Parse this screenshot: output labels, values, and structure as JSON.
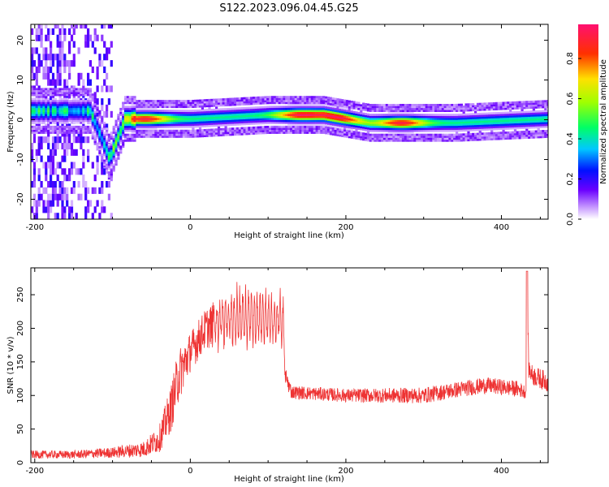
{
  "chart_data": [
    {
      "type": "heatmap",
      "title": "S122.2023.096.04.45.G25",
      "xlabel": "Height of straight line (km)",
      "ylabel": "Frequency (Hz)",
      "xlim": [
        -205,
        460
      ],
      "ylim": [
        -25,
        24
      ],
      "x_ticks": [
        -200,
        0,
        200,
        400
      ],
      "y_ticks": [
        -20,
        -10,
        0,
        10,
        20
      ],
      "colorbar": {
        "label": "Normalized spectral amplitude",
        "range": [
          0.0,
          0.97
        ],
        "ticks": [
          0.0,
          0.2,
          0.4,
          0.6,
          0.8
        ]
      },
      "ridge": {
        "description_points": [
          {
            "x": -130,
            "y": 2
          },
          {
            "x": -115,
            "y": -5
          },
          {
            "x": -105,
            "y": -10
          },
          {
            "x": -85,
            "y": 0
          },
          {
            "x": -70,
            "y": 0
          },
          {
            "x": 0,
            "y": 0
          },
          {
            "x": 50,
            "y": 0.5
          },
          {
            "x": 100,
            "y": 1
          },
          {
            "x": 170,
            "y": 1
          },
          {
            "x": 200,
            "y": 0
          },
          {
            "x": 230,
            "y": -1
          },
          {
            "x": 340,
            "y": -1
          },
          {
            "x": 460,
            "y": 0
          }
        ],
        "peak_amplitude_near": [
          -60,
          140,
          190,
          270
        ]
      }
    },
    {
      "type": "line",
      "xlabel": "Height of straight line (km)",
      "ylabel": "SNR (10 * v/v)",
      "xlim": [
        -205,
        460
      ],
      "ylim": [
        0,
        290
      ],
      "x_ticks": [
        -200,
        0,
        200,
        400
      ],
      "y_ticks": [
        0,
        50,
        100,
        150,
        200,
        250
      ],
      "color": "#ee3333",
      "envelope": {
        "x": [
          -205,
          -150,
          -100,
          -60,
          -40,
          -25,
          -15,
          0,
          20,
          40,
          60,
          80,
          100,
          120,
          122,
          130,
          200,
          300,
          350,
          380,
          420,
          432,
          433,
          435,
          440,
          460
        ],
        "mean": [
          12,
          12,
          15,
          20,
          35,
          80,
          130,
          165,
          200,
          210,
          215,
          218,
          215,
          210,
          130,
          105,
          100,
          100,
          110,
          115,
          110,
          105,
          280,
          140,
          130,
          120
        ],
        "spread": [
          6,
          6,
          8,
          12,
          20,
          35,
          40,
          30,
          30,
          40,
          45,
          45,
          40,
          40,
          15,
          10,
          10,
          12,
          12,
          12,
          12,
          10,
          10,
          15,
          15,
          15
        ]
      }
    }
  ]
}
